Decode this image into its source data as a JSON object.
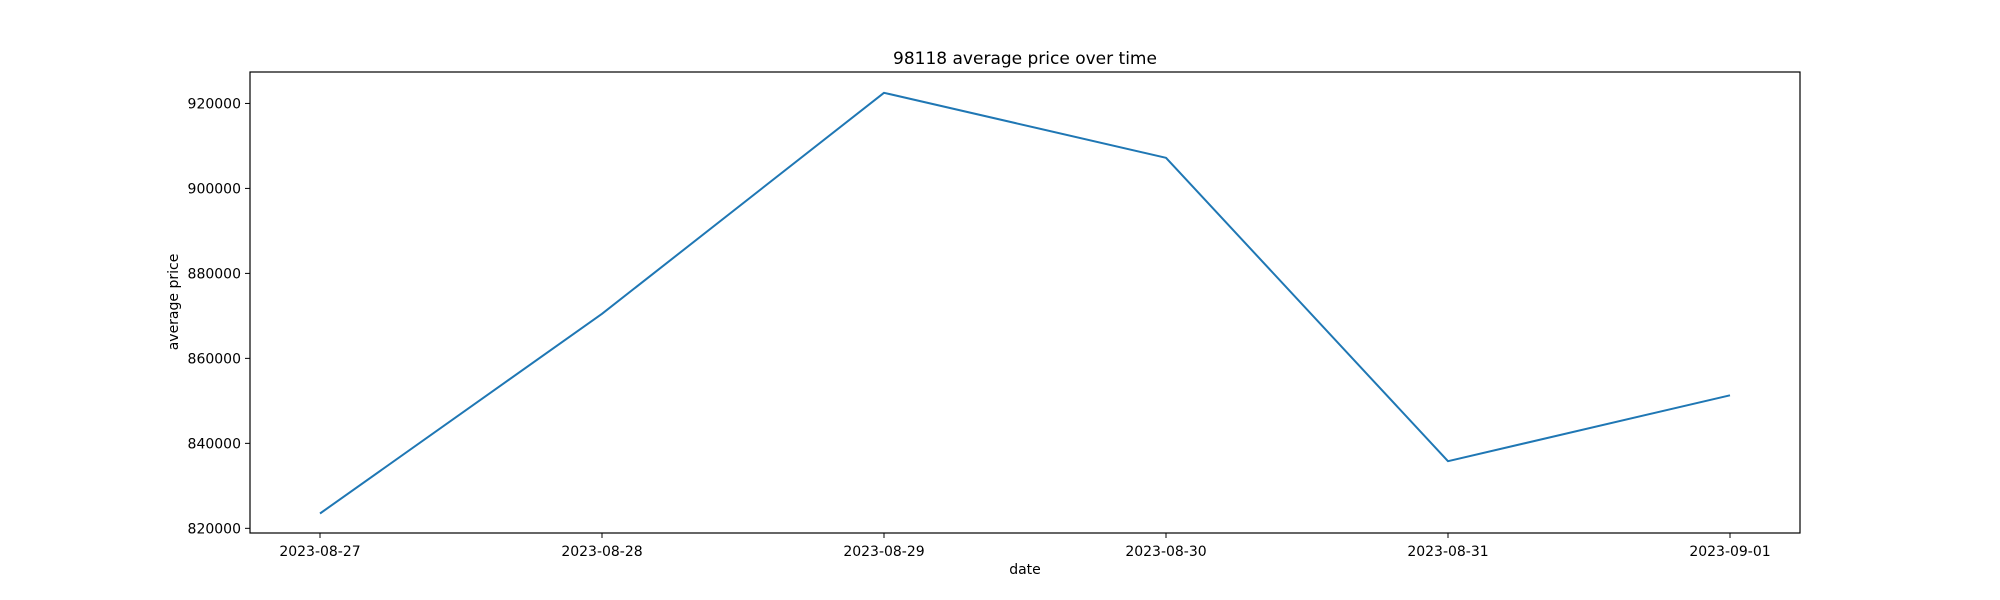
{
  "chart_data": {
    "type": "line",
    "title": "98118 average price over time",
    "xlabel": "date",
    "ylabel": "average price",
    "categories": [
      "2023-08-27",
      "2023-08-28",
      "2023-08-29",
      "2023-08-30",
      "2023-08-31",
      "2023-09-01"
    ],
    "series": [
      {
        "values": [
          823500,
          870500,
          922500,
          907200,
          835800,
          851300
        ],
        "color": "#1f77b4"
      }
    ],
    "yticks": [
      820000,
      840000,
      860000,
      880000,
      900000,
      920000
    ],
    "ylim": [
      818900,
      927400
    ],
    "grid": false,
    "legend": "none"
  }
}
